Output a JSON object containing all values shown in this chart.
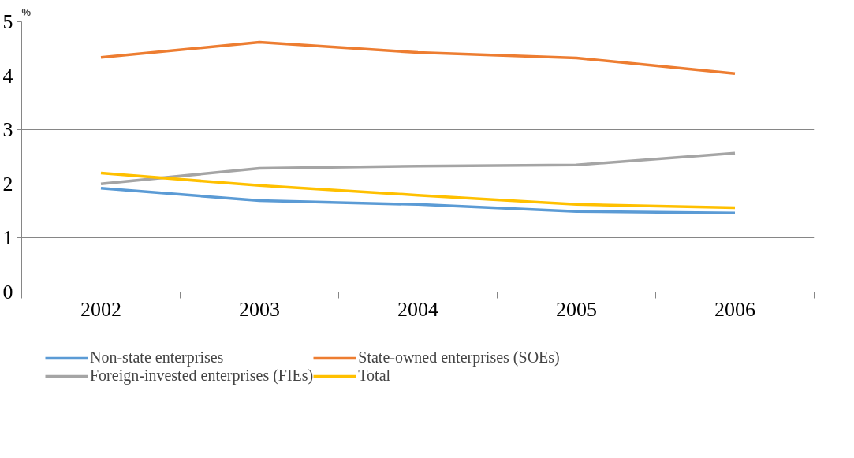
{
  "chart_data": {
    "type": "line",
    "ylabel": "%",
    "categories": [
      "2002",
      "2003",
      "2004",
      "2005",
      "2006"
    ],
    "series": [
      {
        "name": "Non-state enterprises",
        "color": "#5b9bd5",
        "values": [
          1.92,
          1.69,
          1.62,
          1.49,
          1.46
        ]
      },
      {
        "name": "State-owned enterprises (SOEs)",
        "color": "#ed7d31",
        "values": [
          4.34,
          4.62,
          4.43,
          4.33,
          4.04
        ]
      },
      {
        "name": "Foreign-invested enterprises (FIEs)",
        "color": "#a5a5a5",
        "values": [
          2.0,
          2.29,
          2.33,
          2.35,
          2.57
        ]
      },
      {
        "name": "Total",
        "color": "#ffc000",
        "values": [
          2.2,
          1.97,
          1.79,
          1.62,
          1.56
        ]
      }
    ],
    "ylim": [
      0,
      5
    ],
    "yticks": [
      0,
      1,
      2,
      3,
      4,
      5
    ],
    "grid": "y",
    "legend": "bottom",
    "marker": "none",
    "line_style": "solid"
  }
}
